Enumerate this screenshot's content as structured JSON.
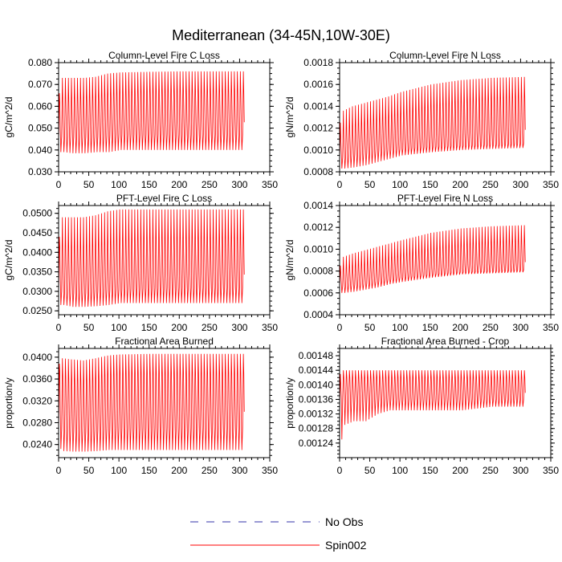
{
  "figure": {
    "title": "Mediterranean (34-45N,10W-30E)"
  },
  "legend": {
    "items": [
      {
        "label": "No Obs",
        "color": "#0000cc",
        "style": "dashed"
      },
      {
        "label": "Spin002",
        "color": "#ff0000",
        "style": "solid"
      }
    ]
  },
  "chart_data": [
    {
      "type": "line",
      "title": "Column-Level Fire C Loss",
      "ylabel": "gC/m^2/d",
      "xlabel": "",
      "xlim": [
        0,
        350
      ],
      "ylim": [
        0.03,
        0.08
      ],
      "xticks": [
        0,
        50,
        100,
        150,
        200,
        250,
        300,
        350
      ],
      "yticks": [
        0.03,
        0.04,
        0.05,
        0.06,
        0.07,
        0.08
      ],
      "ytick_labels": [
        "0.030",
        "0.040",
        "0.050",
        "0.060",
        "0.070",
        "0.080"
      ],
      "series": [
        {
          "name": "Spin002",
          "color": "#ff0000",
          "x_end": 308,
          "envelope": {
            "x": [
              0,
              5,
              20,
              40,
              60,
              80,
              100,
              150,
              200,
              250,
              308
            ],
            "high": [
              0.066,
              0.073,
              0.073,
              0.073,
              0.0735,
              0.075,
              0.0755,
              0.0758,
              0.076,
              0.076,
              0.076
            ],
            "upper": [
              0.062,
              0.062,
              0.062,
              0.0625,
              0.063,
              0.064,
              0.065,
              0.066,
              0.066,
              0.066,
              0.066
            ],
            "lower": [
              0.044,
              0.046,
              0.046,
              0.046,
              0.046,
              0.0465,
              0.047,
              0.047,
              0.047,
              0.047,
              0.047
            ],
            "low": [
              0.039,
              0.039,
              0.0385,
              0.0385,
              0.039,
              0.039,
              0.04,
              0.04,
              0.04,
              0.04,
              0.04
            ]
          }
        }
      ]
    },
    {
      "type": "line",
      "title": "Column-Level Fire N Loss",
      "ylabel": "gN/m^2/d",
      "xlabel": "",
      "xlim": [
        0,
        350
      ],
      "ylim": [
        0.0008,
        0.0018
      ],
      "xticks": [
        0,
        50,
        100,
        150,
        200,
        250,
        300,
        350
      ],
      "yticks": [
        0.0008,
        0.001,
        0.0012,
        0.0014,
        0.0016,
        0.0018
      ],
      "ytick_labels": [
        "0.0008",
        "0.0010",
        "0.0012",
        "0.0014",
        "0.0016",
        "0.0018"
      ],
      "series": [
        {
          "name": "Spin002",
          "color": "#ff0000",
          "x_end": 308,
          "envelope": {
            "x": [
              0,
              5,
              20,
              40,
              60,
              80,
              100,
              150,
              200,
              250,
              308
            ],
            "high": [
              0.00125,
              0.00136,
              0.0014,
              0.00143,
              0.00146,
              0.00149,
              0.00153,
              0.0016,
              0.00164,
              0.00166,
              0.00167
            ],
            "upper": [
              0.0011,
              0.00112,
              0.00116,
              0.00119,
              0.00122,
              0.00125,
              0.00128,
              0.00136,
              0.00142,
              0.00145,
              0.00148
            ],
            "lower": [
              0.00092,
              0.00093,
              0.00095,
              0.00097,
              0.00099,
              0.001,
              0.00101,
              0.00103,
              0.00104,
              0.00105,
              0.00106
            ],
            "low": [
              0.00083,
              0.00083,
              0.00084,
              0.00086,
              0.00089,
              0.00092,
              0.00095,
              0.00098,
              0.001,
              0.00101,
              0.00102
            ]
          }
        }
      ]
    },
    {
      "type": "line",
      "title": "PFT-Level Fire C Loss",
      "ylabel": "gC/m^2/d",
      "xlabel": "",
      "xlim": [
        0,
        350
      ],
      "ylim": [
        0.024,
        0.052
      ],
      "xticks": [
        0,
        50,
        100,
        150,
        200,
        250,
        300,
        350
      ],
      "yticks": [
        0.025,
        0.03,
        0.035,
        0.04,
        0.045,
        0.05
      ],
      "ytick_labels": [
        "0.0250",
        "0.0300",
        "0.0350",
        "0.0400",
        "0.0450",
        "0.0500"
      ],
      "series": [
        {
          "name": "Spin002",
          "color": "#ff0000",
          "x_end": 308,
          "envelope": {
            "x": [
              0,
              5,
              20,
              40,
              60,
              80,
              100,
              150,
              200,
              250,
              308
            ],
            "high": [
              0.044,
              0.049,
              0.049,
              0.049,
              0.0495,
              0.0505,
              0.051,
              0.051,
              0.051,
              0.051,
              0.051
            ],
            "upper": [
              0.0415,
              0.0395,
              0.039,
              0.039,
              0.0395,
              0.04,
              0.041,
              0.042,
              0.042,
              0.042,
              0.042
            ],
            "lower": [
              0.03,
              0.03,
              0.0295,
              0.0295,
              0.03,
              0.0303,
              0.0305,
              0.0308,
              0.031,
              0.031,
              0.031
            ],
            "low": [
              0.0265,
              0.0265,
              0.026,
              0.026,
              0.0262,
              0.0265,
              0.027,
              0.027,
              0.027,
              0.027,
              0.027
            ]
          }
        }
      ]
    },
    {
      "type": "line",
      "title": "PFT-Level Fire N Loss",
      "ylabel": "gN/m^2/d",
      "xlabel": "",
      "xlim": [
        0,
        350
      ],
      "ylim": [
        0.0004,
        0.0014
      ],
      "xticks": [
        0,
        50,
        100,
        150,
        200,
        250,
        300,
        350
      ],
      "yticks": [
        0.0004,
        0.0006,
        0.0008,
        0.001,
        0.0012,
        0.0014
      ],
      "ytick_labels": [
        "0.0004",
        "0.0006",
        "0.0008",
        "0.0010",
        "0.0012",
        "0.0014"
      ],
      "series": [
        {
          "name": "Spin002",
          "color": "#ff0000",
          "x_end": 308,
          "envelope": {
            "x": [
              0,
              5,
              20,
              40,
              60,
              80,
              100,
              150,
              200,
              250,
              308
            ],
            "high": [
              0.00085,
              0.00093,
              0.00096,
              0.00099,
              0.00102,
              0.00105,
              0.00108,
              0.00115,
              0.00119,
              0.00121,
              0.00122
            ],
            "upper": [
              0.00078,
              0.00078,
              0.0008,
              0.00082,
              0.00084,
              0.00086,
              0.00089,
              0.00095,
              0.001,
              0.00103,
              0.00105
            ],
            "lower": [
              0.00066,
              0.00066,
              0.00067,
              0.00068,
              0.0007,
              0.00072,
              0.00074,
              0.00077,
              0.00079,
              0.0008,
              0.00081
            ],
            "low": [
              0.0006,
              0.0006,
              0.00061,
              0.00063,
              0.00065,
              0.00068,
              0.0007,
              0.00074,
              0.00077,
              0.00078,
              0.00079
            ]
          }
        }
      ]
    },
    {
      "type": "line",
      "title": "Fractional Area Burned",
      "ylabel": "proportion/y",
      "xlabel": "",
      "xlim": [
        0,
        350
      ],
      "ylim": [
        0.0216,
        0.0416
      ],
      "xticks": [
        0,
        50,
        100,
        150,
        200,
        250,
        300,
        350
      ],
      "yticks": [
        0.024,
        0.028,
        0.032,
        0.036,
        0.04
      ],
      "ytick_labels": [
        "0.0240",
        "0.0280",
        "0.0320",
        "0.0360",
        "0.0400"
      ],
      "series": [
        {
          "name": "Spin002",
          "color": "#ff0000",
          "x_end": 308,
          "envelope": {
            "x": [
              0,
              5,
              20,
              40,
              60,
              80,
              100,
              150,
              200,
              250,
              308
            ],
            "high": [
              0.0388,
              0.0398,
              0.0396,
              0.0394,
              0.0398,
              0.0403,
              0.0405,
              0.0406,
              0.0406,
              0.0406,
              0.0406
            ],
            "upper": [
              0.0375,
              0.0365,
              0.0357,
              0.0355,
              0.036,
              0.0368,
              0.037,
              0.037,
              0.037,
              0.037,
              0.037
            ],
            "lower": [
              0.027,
              0.0268,
              0.0265,
              0.0263,
              0.0265,
              0.0268,
              0.027,
              0.027,
              0.027,
              0.027,
              0.027
            ],
            "low": [
              0.0232,
              0.0228,
              0.0227,
              0.0227,
              0.0228,
              0.023,
              0.023,
              0.023,
              0.023,
              0.023,
              0.023
            ]
          }
        }
      ]
    },
    {
      "type": "line",
      "title": "Fractional Area Burned - Crop",
      "ylabel": "proportion/y",
      "xlabel": "",
      "xlim": [
        0,
        350
      ],
      "ylim": [
        0.0012,
        0.0015
      ],
      "xticks": [
        0,
        50,
        100,
        150,
        200,
        250,
        300,
        350
      ],
      "yticks": [
        0.00124,
        0.00128,
        0.00132,
        0.00136,
        0.0014,
        0.00144,
        0.00148
      ],
      "ytick_labels": [
        "0.00124",
        "0.00128",
        "0.00132",
        "0.00136",
        "0.00140",
        "0.00144",
        "0.00148"
      ],
      "series": [
        {
          "name": "Spin002",
          "color": "#ff0000",
          "x_end": 308,
          "envelope": {
            "x": [
              0,
              5,
              20,
              40,
              60,
              80,
              100,
              150,
              200,
              250,
              308
            ],
            "high": [
              0.00143,
              0.00144,
              0.00144,
              0.00144,
              0.00144,
              0.00144,
              0.00144,
              0.00144,
              0.00144,
              0.00144,
              0.00144
            ],
            "upper": [
              0.0014,
              0.00142,
              0.00142,
              0.00142,
              0.00142,
              0.00142,
              0.00142,
              0.00142,
              0.00142,
              0.00142,
              0.00142
            ],
            "lower": [
              0.00135,
              0.00136,
              0.00136,
              0.00136,
              0.00136,
              0.00136,
              0.00136,
              0.00136,
              0.00136,
              0.00136,
              0.00136
            ],
            "low": [
              0.00125,
              0.00129,
              0.0013,
              0.0013,
              0.00132,
              0.00133,
              0.00133,
              0.00133,
              0.00133,
              0.00134,
              0.00134
            ]
          }
        }
      ]
    }
  ]
}
